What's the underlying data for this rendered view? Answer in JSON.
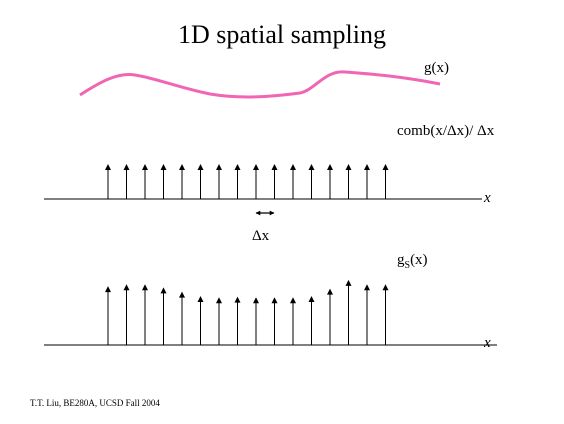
{
  "title": "1D spatial sampling",
  "labels": {
    "g": "g(x)",
    "comb": "comb(x/Δx)/ Δx",
    "delta_x": "Δx",
    "gs_main": "g",
    "gs_sub": "S",
    "gs_arg": "(x)",
    "x_axis_1": "x",
    "x_axis_2": "x"
  },
  "footer": "T.T. Liu, BE280A, UCSD Fall 2004",
  "colors": {
    "curve": "#f066b4",
    "ink": "#000000"
  },
  "comb_count": 16,
  "samples": [
    0.95,
    0.98,
    0.98,
    0.93,
    0.86,
    0.79,
    0.77,
    0.78,
    0.77,
    0.77,
    0.77,
    0.79,
    0.91,
    1.05,
    0.98,
    0.98
  ]
}
